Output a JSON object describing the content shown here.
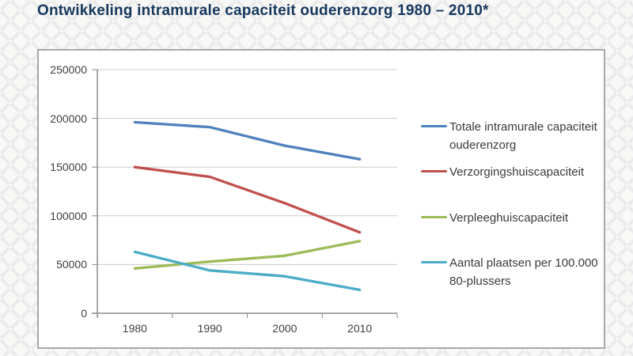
{
  "page": {
    "title": "Ontwikkeling intramurale capaciteit ouderenzorg 1980 – 2010*"
  },
  "chart_data": {
    "type": "line",
    "categories": [
      "1980",
      "1990",
      "2000",
      "2010"
    ],
    "series": [
      {
        "name": "Totale intramurale capaciteit ouderenzorg",
        "color": "#4f81bd",
        "values": [
          196000,
          191000,
          172000,
          158000
        ]
      },
      {
        "name": "Verzorgingshuiscapaciteit",
        "color": "#c0504d",
        "values": [
          150000,
          140000,
          113000,
          83000
        ]
      },
      {
        "name": "Verpleeghuiscapaciteit",
        "color": "#9bbb59",
        "values": [
          46000,
          53000,
          59000,
          74000
        ]
      },
      {
        "name": "Aantal plaatsen per 100.000 80-plussers",
        "color": "#4bacc6",
        "values": [
          63000,
          44000,
          38000,
          24000
        ]
      }
    ],
    "title": "",
    "xlabel": "",
    "ylabel": "",
    "ylim": [
      0,
      250000
    ],
    "yticks": [
      "0",
      "50000",
      "100000",
      "150000",
      "200000",
      "250000"
    ],
    "grid": true,
    "legend_position": "right",
    "axis_color": "#8c8c8c",
    "gridline_color": "#c9c9c9"
  }
}
